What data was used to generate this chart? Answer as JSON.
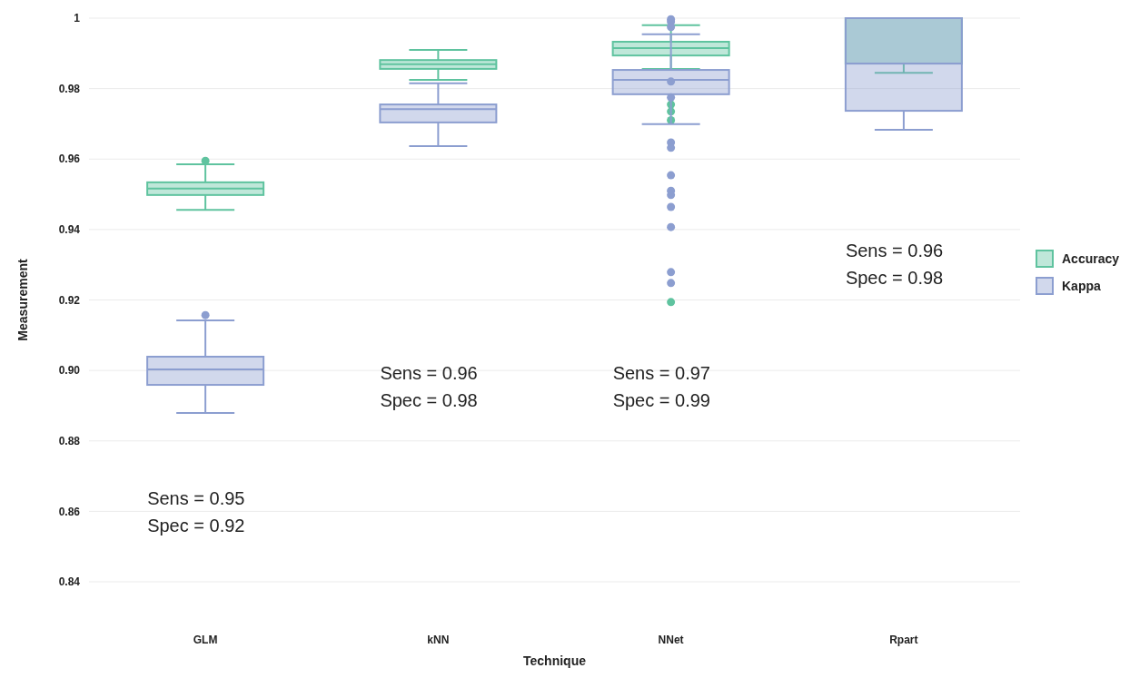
{
  "chart_data": {
    "type": "box",
    "xlabel": "Technique",
    "ylabel": "Measurement",
    "categories": [
      "GLM",
      "kNN",
      "NNet",
      "Rpart"
    ],
    "ylim": [
      0.84,
      1
    ],
    "yticks": [
      0.84,
      0.86,
      0.88,
      {
        "value": 0.9,
        "label": "0.90"
      },
      0.92,
      0.94,
      0.96,
      0.98,
      1
    ],
    "grid": "y",
    "legend": "right",
    "series": [
      {
        "name": "Accuracy",
        "color": "#5fc39f",
        "boxes": [
          {
            "low": 0.9456,
            "q1": 0.9498,
            "median": 0.9516,
            "q3": 0.9534,
            "high": 0.9585,
            "outliers": [
              0.9595
            ]
          },
          {
            "low": 0.9825,
            "q1": 0.9856,
            "median": 0.9869,
            "q3": 0.9881,
            "high": 0.991
          },
          {
            "low": 0.9856,
            "q1": 0.9894,
            "median": 0.9915,
            "q3": 0.9933,
            "high": 0.998,
            "outliers": [
              0.9755,
              0.9735,
              0.971,
              0.9194
            ]
          },
          {
            "low": 0.9845,
            "q1": 0.9871,
            "median": 1,
            "q3": 1,
            "high": 1
          }
        ]
      },
      {
        "name": "Kappa",
        "color": "#8c9ed0",
        "boxes": [
          {
            "low": 0.8879,
            "q1": 0.8959,
            "median": 0.9003,
            "q3": 0.9039,
            "high": 0.9142,
            "outliers": [
              0.9157
            ]
          },
          {
            "low": 0.9637,
            "q1": 0.9704,
            "median": 0.9742,
            "q3": 0.9755,
            "high": 0.9815
          },
          {
            "low": 0.9699,
            "q1": 0.9784,
            "median": 0.9825,
            "q3": 0.9853,
            "high": 0.9954,
            "outliers": [
              0.9997,
              0.999,
              0.9975,
              0.982,
              0.9775,
              0.9647,
              0.9632,
              0.9554,
              0.951,
              0.9498,
              0.9464,
              0.9407,
              0.9279,
              0.9248
            ]
          },
          {
            "low": 0.9683,
            "q1": 0.9737,
            "median": 0.9871,
            "q3": 1,
            "high": 1
          }
        ]
      }
    ],
    "annotations": [
      "Sens = 0.95\nSpec = 0.92",
      "Sens = 0.96\nSpec = 0.98",
      "Sens = 0.97\nSpec = 0.99",
      "Sens = 0.96\nSpec = 0.98"
    ]
  }
}
